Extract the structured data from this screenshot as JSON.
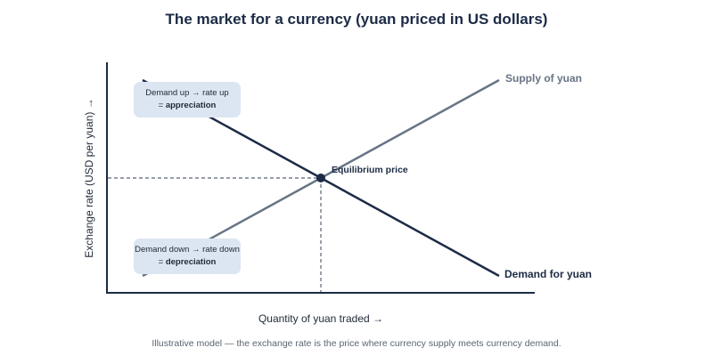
{
  "title": "The market for a currency (yuan priced in US dollars)",
  "axes": {
    "x_label": "Quantity of yuan traded →",
    "y_label": "Exchange rate (USD per yuan) →"
  },
  "curves": {
    "supply": {
      "label": "Supply of yuan",
      "color": "#687485"
    },
    "demand": {
      "label": "Demand for yuan",
      "color": "#1c2b45"
    }
  },
  "equilibrium": {
    "label": "Equilibrium price",
    "color": "#1c2b45"
  },
  "callouts": {
    "appreciation": {
      "line1": "Demand up → rate up",
      "prefix": "= ",
      "strong": "appreciation"
    },
    "depreciation": {
      "line1": "Demand down → rate down",
      "prefix": "= ",
      "strong": "depreciation"
    }
  },
  "caption": "Illustrative model — the exchange rate is the price where currency supply meets currency demand."
}
